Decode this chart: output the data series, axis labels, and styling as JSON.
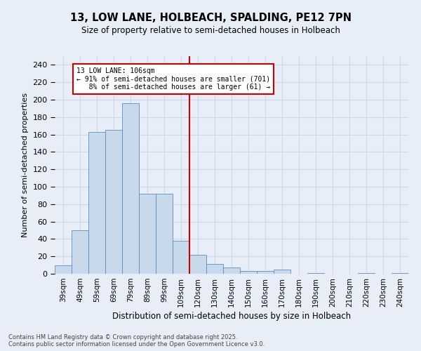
{
  "title": "13, LOW LANE, HOLBEACH, SPALDING, PE12 7PN",
  "subtitle": "Size of property relative to semi-detached houses in Holbeach",
  "xlabel": "Distribution of semi-detached houses by size in Holbeach",
  "ylabel": "Number of semi-detached properties",
  "categories": [
    "39sqm",
    "49sqm",
    "59sqm",
    "69sqm",
    "79sqm",
    "89sqm",
    "99sqm",
    "109sqm",
    "120sqm",
    "130sqm",
    "140sqm",
    "150sqm",
    "160sqm",
    "170sqm",
    "180sqm",
    "190sqm",
    "200sqm",
    "210sqm",
    "220sqm",
    "230sqm",
    "240sqm"
  ],
  "values": [
    10,
    50,
    163,
    165,
    196,
    92,
    92,
    38,
    22,
    11,
    7,
    3,
    3,
    5,
    0,
    1,
    0,
    0,
    1,
    0,
    1
  ],
  "bar_color": "#c9d9ec",
  "bar_edge_color": "#5a8fc0",
  "property_label": "13 LOW LANE: 106sqm",
  "pct_smaller": 91,
  "n_smaller": 701,
  "pct_larger": 8,
  "n_larger": 61,
  "vline_x": 7.5,
  "annotation_box_color": "#ffffff",
  "annotation_box_edge": "#cc0000",
  "vline_color": "#cc0000",
  "grid_color": "#d0d8e8",
  "background_color": "#e8eef7",
  "ylim": [
    0,
    250
  ],
  "yticks": [
    0,
    20,
    40,
    60,
    80,
    100,
    120,
    140,
    160,
    180,
    200,
    220,
    240
  ],
  "footer_line1": "Contains HM Land Registry data © Crown copyright and database right 2025.",
  "footer_line2": "Contains public sector information licensed under the Open Government Licence v3.0."
}
